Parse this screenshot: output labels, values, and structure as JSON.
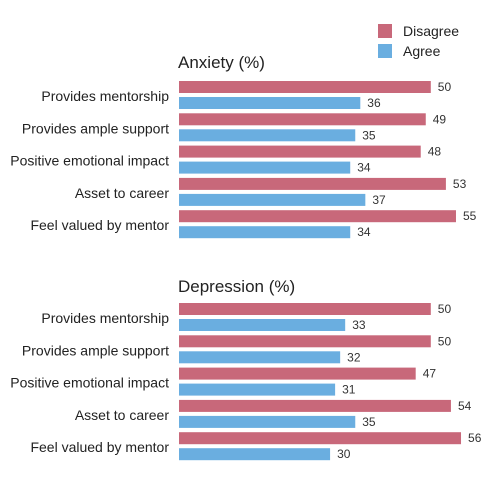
{
  "chart_data": [
    {
      "type": "bar",
      "orientation": "horizontal",
      "title": "Anxiety (%)",
      "categories": [
        "Provides mentorship",
        "Provides ample support",
        "Positive emotional impact",
        "Asset to career",
        "Feel valued by mentor"
      ],
      "series": [
        {
          "name": "Disagree",
          "values": [
            50,
            49,
            48,
            53,
            55
          ]
        },
        {
          "name": "Agree",
          "values": [
            36,
            35,
            34,
            37,
            34
          ]
        }
      ],
      "xlim": [
        0,
        56
      ]
    },
    {
      "type": "bar",
      "orientation": "horizontal",
      "title": "Depression (%)",
      "categories": [
        "Provides mentorship",
        "Provides ample support",
        "Positive emotional impact",
        "Asset to career",
        "Feel valued by mentor"
      ],
      "series": [
        {
          "name": "Disagree",
          "values": [
            50,
            50,
            47,
            54,
            56
          ]
        },
        {
          "name": "Agree",
          "values": [
            33,
            32,
            31,
            35,
            30
          ]
        }
      ],
      "xlim": [
        0,
        56
      ]
    }
  ],
  "legend": {
    "position": "top-right",
    "items": [
      {
        "label": "Disagree",
        "color": "#c8687a"
      },
      {
        "label": "Agree",
        "color": "#6aaee0"
      }
    ]
  }
}
